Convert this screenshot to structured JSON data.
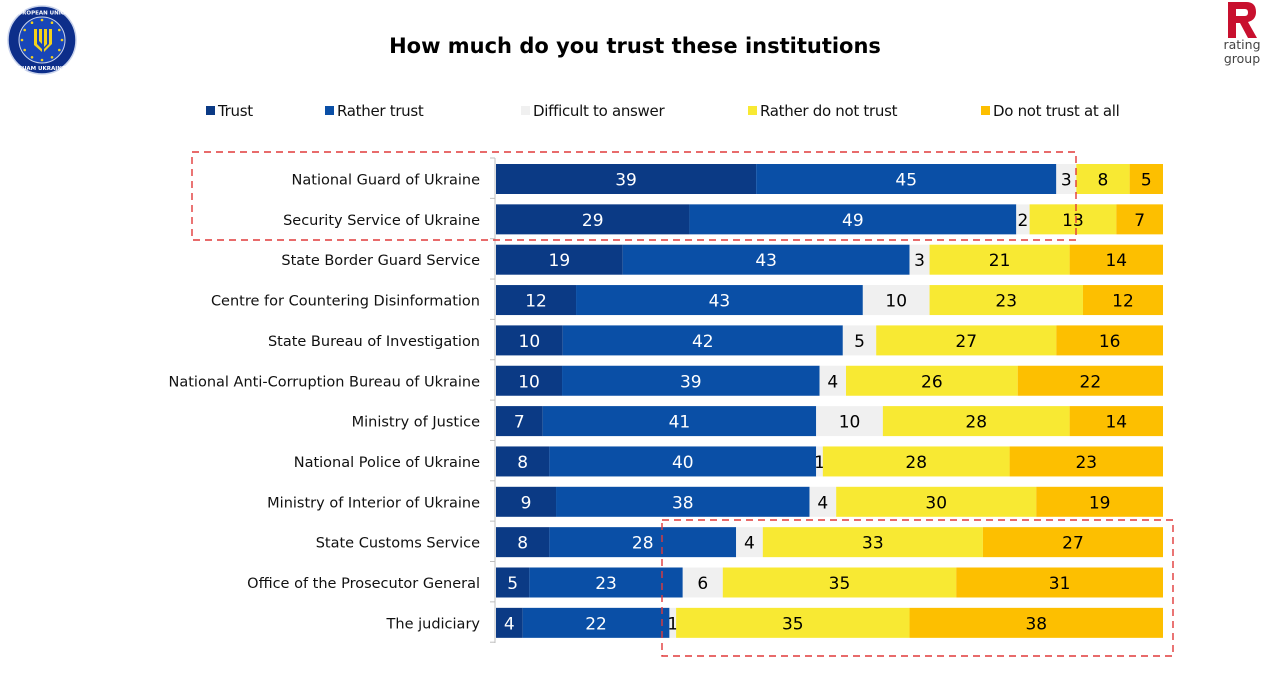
{
  "header": {
    "title": "How much do you trust these institutions",
    "left_logo": {
      "name": "eu-advisory-mission-logo",
      "ring_top": "EUROPEAN UNION",
      "ring_bottom": "EUAM UKRAINE"
    },
    "right_logo": {
      "letter": "R",
      "line1": "rating",
      "line2": "group",
      "color": "#c8102e"
    }
  },
  "colors": {
    "trust": "#0b3a85",
    "rather_trust": "#0a4fa6",
    "difficult": "#f0f0f0",
    "rather_not": "#f8e933",
    "not_at_all": "#fdbf00",
    "highlight_box": "#e03a3a"
  },
  "chart_data": {
    "type": "bar",
    "orientation": "horizontal",
    "stacked": true,
    "title": "How much do you trust these institutions",
    "xlabel": "",
    "ylabel": "",
    "unit": "%",
    "legend_position": "top",
    "grid": false,
    "categories": [
      "National Guard of Ukraine",
      "Security Service of Ukraine",
      "State Border Guard Service",
      "Centre for Countering Disinformation",
      "State Bureau of Investigation",
      "National Anti-Corruption Bureau of Ukraine",
      "Ministry of Justice",
      "National Police of Ukraine",
      "Ministry of Interior of Ukraine",
      "State Customs Service",
      "Office of the Prosecutor General",
      "The judiciary"
    ],
    "series": [
      {
        "name": "Trust",
        "key": "trust",
        "values": [
          39,
          29,
          19,
          12,
          10,
          10,
          7,
          8,
          9,
          8,
          5,
          4
        ]
      },
      {
        "name": "Rather trust",
        "key": "rather_trust",
        "values": [
          45,
          49,
          43,
          43,
          42,
          39,
          41,
          40,
          38,
          28,
          23,
          22
        ]
      },
      {
        "name": "Difficult to answer",
        "key": "difficult",
        "values": [
          3,
          2,
          3,
          10,
          5,
          4,
          10,
          1,
          4,
          4,
          6,
          1
        ]
      },
      {
        "name": "Rather do not trust",
        "key": "rather_not",
        "values": [
          8,
          13,
          21,
          23,
          27,
          26,
          28,
          28,
          30,
          33,
          35,
          35
        ]
      },
      {
        "name": "Do not trust at all",
        "key": "not_at_all",
        "values": [
          5,
          7,
          14,
          12,
          16,
          22,
          14,
          23,
          19,
          27,
          31,
          38
        ]
      }
    ],
    "annotations": [
      {
        "type": "dashed-highlight-box",
        "covers_categories": [
          "National Guard of Ukraine",
          "Security Service of Ukraine"
        ],
        "covers_series": [
          "Trust",
          "Rather trust",
          "Difficult to answer"
        ]
      },
      {
        "type": "dashed-highlight-box",
        "covers_categories": [
          "State Customs Service",
          "Office of the Prosecutor General",
          "The judiciary"
        ],
        "covers_series": [
          "Difficult to answer",
          "Rather do not trust",
          "Do not trust at all"
        ]
      }
    ]
  }
}
